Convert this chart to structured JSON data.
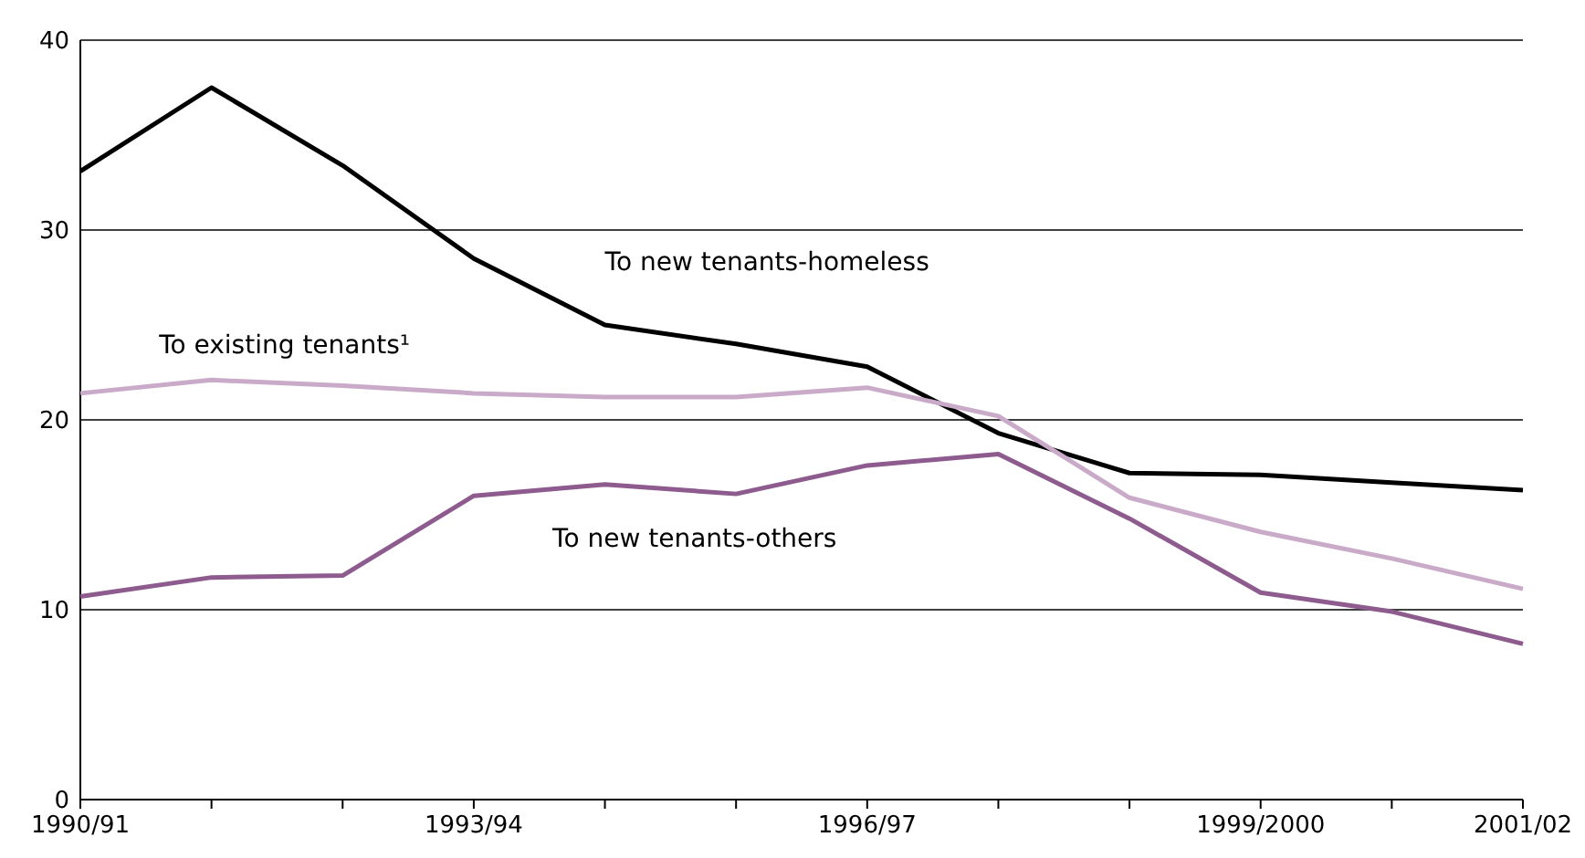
{
  "chart_data": {
    "type": "line",
    "categories": [
      "1990/91",
      null,
      null,
      "1993/94",
      null,
      null,
      "1996/97",
      null,
      null,
      "1999/2000",
      null,
      "2001/02"
    ],
    "series": [
      {
        "name": "To new tenants-homeless",
        "color": "#000000",
        "values": [
          33.1,
          37.5,
          33.4,
          28.5,
          25.0,
          24.0,
          22.8,
          19.3,
          17.2,
          17.1,
          16.7,
          16.3
        ]
      },
      {
        "name": "To existing tenants¹",
        "color": "#c9aac9",
        "values": [
          21.4,
          22.1,
          21.8,
          21.4,
          21.2,
          21.2,
          21.7,
          20.2,
          15.9,
          14.1,
          12.7,
          11.1
        ]
      },
      {
        "name": "To new tenants-others",
        "color": "#8e5b8e",
        "values": [
          10.7,
          11.7,
          11.8,
          16.0,
          16.6,
          16.1,
          17.6,
          18.2,
          14.8,
          10.9,
          9.9,
          8.2
        ]
      }
    ],
    "ylim": [
      0,
      40
    ],
    "yticks": [
      0,
      10,
      20,
      30,
      40
    ],
    "grid": "y",
    "marker": "none",
    "line_style": "solid",
    "legend": false
  }
}
